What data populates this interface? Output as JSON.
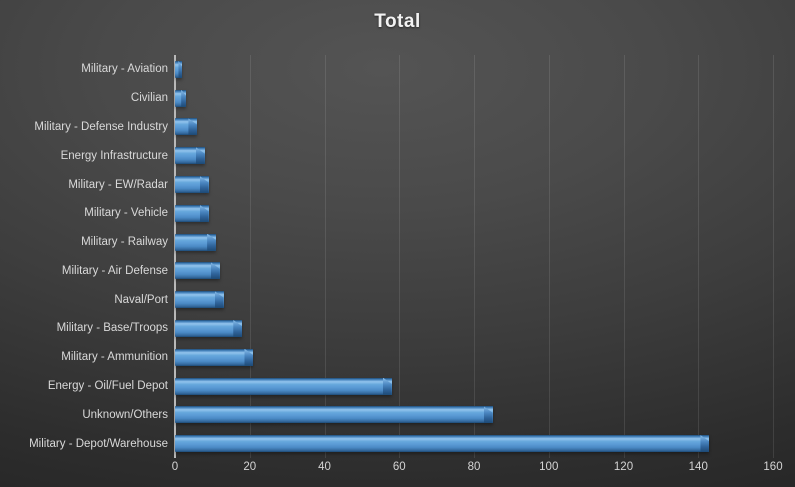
{
  "chart_data": {
    "type": "bar",
    "orientation": "horizontal",
    "title": "Total",
    "categories": [
      "Military - Aviation",
      "Civilian",
      "Military - Defense Industry",
      "Energy Infrastructure",
      "Military - EW/Radar",
      "Military - Vehicle",
      "Military - Railway",
      "Military - Air Defense",
      "Naval/Port",
      "Military - Base/Troops",
      "Military - Ammunition",
      "Energy - Oil/Fuel Depot",
      "Unknown/Others",
      "Military - Depot/Warehouse"
    ],
    "values": [
      2,
      3,
      6,
      8,
      9,
      9,
      11,
      12,
      13,
      18,
      21,
      58,
      85,
      143
    ],
    "xlabel": "",
    "ylabel": "",
    "xlim": [
      0,
      160
    ],
    "x_ticks": [
      0,
      20,
      40,
      60,
      80,
      100,
      120,
      140,
      160
    ],
    "grid": true,
    "legend": "none",
    "colors": {
      "bar_fill": "#5b9bd5",
      "bar_edge_dark": "#1d4a75",
      "background": "#3d3d3d",
      "gridline": "rgba(255,255,255,0.10)",
      "axis_line": "#b9b9b9",
      "label_text": "#d9d9d9",
      "title_text": "#f2f2f2"
    }
  }
}
